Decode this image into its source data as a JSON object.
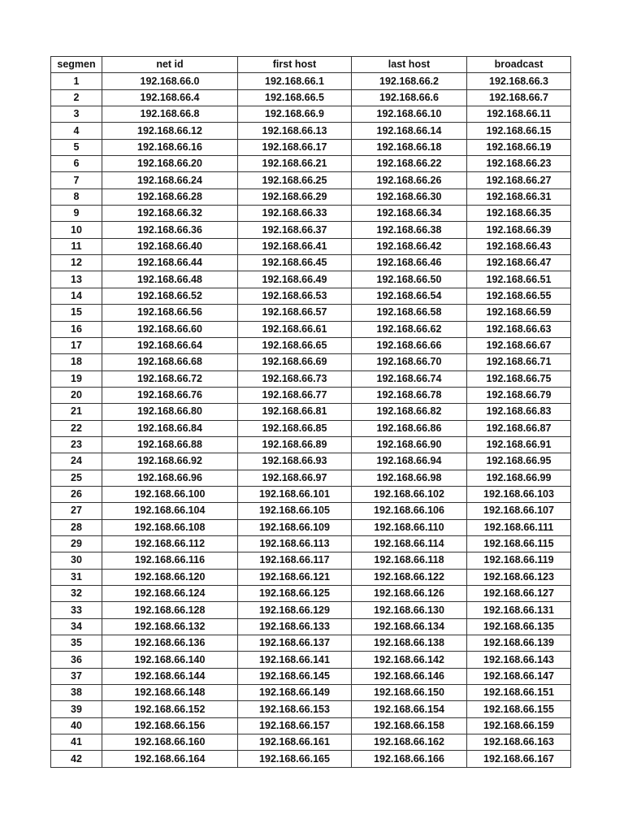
{
  "table": {
    "headers": [
      "segmen",
      "net id",
      "first host",
      "last host",
      "broadcast"
    ],
    "rows": [
      [
        "1",
        "192.168.66.0",
        "192.168.66.1",
        "192.168.66.2",
        "192.168.66.3"
      ],
      [
        "2",
        "192.168.66.4",
        "192.168.66.5",
        "192.168.66.6",
        "192.168.66.7"
      ],
      [
        "3",
        "192.168.66.8",
        "192.168.66.9",
        "192.168.66.10",
        "192.168.66.11"
      ],
      [
        "4",
        "192.168.66.12",
        "192.168.66.13",
        "192.168.66.14",
        "192.168.66.15"
      ],
      [
        "5",
        "192.168.66.16",
        "192.168.66.17",
        "192.168.66.18",
        "192.168.66.19"
      ],
      [
        "6",
        "192.168.66.20",
        "192.168.66.21",
        "192.168.66.22",
        "192.168.66.23"
      ],
      [
        "7",
        "192.168.66.24",
        "192.168.66.25",
        "192.168.66.26",
        "192.168.66.27"
      ],
      [
        "8",
        "192.168.66.28",
        "192.168.66.29",
        "192.168.66.30",
        "192.168.66.31"
      ],
      [
        "9",
        "192.168.66.32",
        "192.168.66.33",
        "192.168.66.34",
        "192.168.66.35"
      ],
      [
        "10",
        "192.168.66.36",
        "192.168.66.37",
        "192.168.66.38",
        "192.168.66.39"
      ],
      [
        "11",
        "192.168.66.40",
        "192.168.66.41",
        "192.168.66.42",
        "192.168.66.43"
      ],
      [
        "12",
        "192.168.66.44",
        "192.168.66.45",
        "192.168.66.46",
        "192.168.66.47"
      ],
      [
        "13",
        "192.168.66.48",
        "192.168.66.49",
        "192.168.66.50",
        "192.168.66.51"
      ],
      [
        "14",
        "192.168.66.52",
        "192.168.66.53",
        "192.168.66.54",
        "192.168.66.55"
      ],
      [
        "15",
        "192.168.66.56",
        "192.168.66.57",
        "192.168.66.58",
        "192.168.66.59"
      ],
      [
        "16",
        "192.168.66.60",
        "192.168.66.61",
        "192.168.66.62",
        "192.168.66.63"
      ],
      [
        "17",
        "192.168.66.64",
        "192.168.66.65",
        "192.168.66.66",
        "192.168.66.67"
      ],
      [
        "18",
        "192.168.66.68",
        "192.168.66.69",
        "192.168.66.70",
        "192.168.66.71"
      ],
      [
        "19",
        "192.168.66.72",
        "192.168.66.73",
        "192.168.66.74",
        "192.168.66.75"
      ],
      [
        "20",
        "192.168.66.76",
        "192.168.66.77",
        "192.168.66.78",
        "192.168.66.79"
      ],
      [
        "21",
        "192.168.66.80",
        "192.168.66.81",
        "192.168.66.82",
        "192.168.66.83"
      ],
      [
        "22",
        "192.168.66.84",
        "192.168.66.85",
        "192.168.66.86",
        "192.168.66.87"
      ],
      [
        "23",
        "192.168.66.88",
        "192.168.66.89",
        "192.168.66.90",
        "192.168.66.91"
      ],
      [
        "24",
        "192.168.66.92",
        "192.168.66.93",
        "192.168.66.94",
        "192.168.66.95"
      ],
      [
        "25",
        "192.168.66.96",
        "192.168.66.97",
        "192.168.66.98",
        "192.168.66.99"
      ],
      [
        "26",
        "192.168.66.100",
        "192.168.66.101",
        "192.168.66.102",
        "192.168.66.103"
      ],
      [
        "27",
        "192.168.66.104",
        "192.168.66.105",
        "192.168.66.106",
        "192.168.66.107"
      ],
      [
        "28",
        "192.168.66.108",
        "192.168.66.109",
        "192.168.66.110",
        "192.168.66.111"
      ],
      [
        "29",
        "192.168.66.112",
        "192.168.66.113",
        "192.168.66.114",
        "192.168.66.115"
      ],
      [
        "30",
        "192.168.66.116",
        "192.168.66.117",
        "192.168.66.118",
        "192.168.66.119"
      ],
      [
        "31",
        "192.168.66.120",
        "192.168.66.121",
        "192.168.66.122",
        "192.168.66.123"
      ],
      [
        "32",
        "192.168.66.124",
        "192.168.66.125",
        "192.168.66.126",
        "192.168.66.127"
      ],
      [
        "33",
        "192.168.66.128",
        "192.168.66.129",
        "192.168.66.130",
        "192.168.66.131"
      ],
      [
        "34",
        "192.168.66.132",
        "192.168.66.133",
        "192.168.66.134",
        "192.168.66.135"
      ],
      [
        "35",
        "192.168.66.136",
        "192.168.66.137",
        "192.168.66.138",
        "192.168.66.139"
      ],
      [
        "36",
        "192.168.66.140",
        "192.168.66.141",
        "192.168.66.142",
        "192.168.66.143"
      ],
      [
        "37",
        "192.168.66.144",
        "192.168.66.145",
        "192.168.66.146",
        "192.168.66.147"
      ],
      [
        "38",
        "192.168.66.148",
        "192.168.66.149",
        "192.168.66.150",
        "192.168.66.151"
      ],
      [
        "39",
        "192.168.66.152",
        "192.168.66.153",
        "192.168.66.154",
        "192.168.66.155"
      ],
      [
        "40",
        "192.168.66.156",
        "192.168.66.157",
        "192.168.66.158",
        "192.168.66.159"
      ],
      [
        "41",
        "192.168.66.160",
        "192.168.66.161",
        "192.168.66.162",
        "192.168.66.163"
      ],
      [
        "42",
        "192.168.66.164",
        "192.168.66.165",
        "192.168.66.166",
        "192.168.66.167"
      ]
    ]
  }
}
